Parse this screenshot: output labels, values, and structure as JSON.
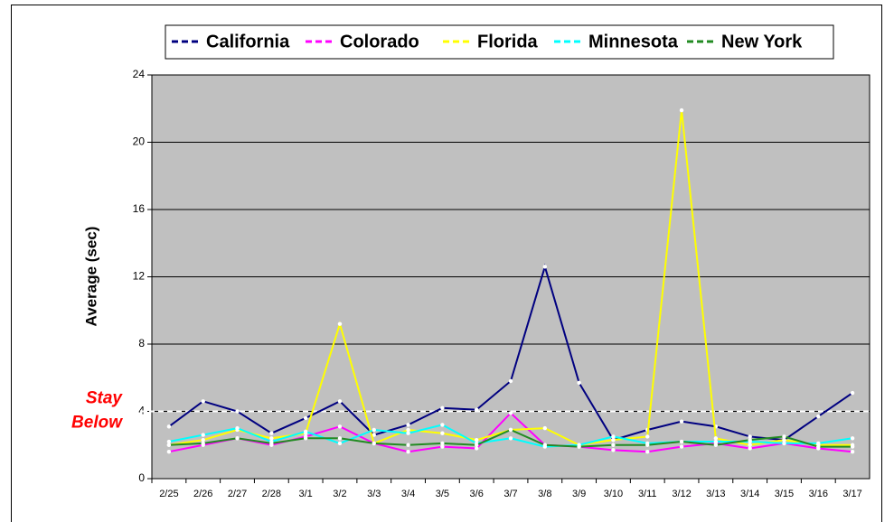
{
  "chart_data": {
    "type": "line",
    "y_label": "Average (sec)",
    "categories": [
      "2/25",
      "2/26",
      "2/27",
      "2/28",
      "3/1",
      "3/2",
      "3/3",
      "3/4",
      "3/5",
      "3/6",
      "3/7",
      "3/8",
      "3/9",
      "3/10",
      "3/11",
      "3/12",
      "3/13",
      "3/14",
      "3/15",
      "3/16",
      "3/17"
    ],
    "series": [
      {
        "name": "California",
        "color": "#000080",
        "values": [
          3.1,
          4.6,
          4.0,
          2.7,
          3.6,
          4.6,
          2.6,
          3.2,
          4.2,
          4.1,
          5.8,
          12.6,
          5.7,
          2.3,
          2.9,
          3.4,
          3.1,
          2.5,
          2.3,
          3.7,
          5.1
        ]
      },
      {
        "name": "Colorado",
        "color": "#ff00ff",
        "values": [
          1.6,
          2.0,
          2.4,
          2.0,
          2.5,
          3.1,
          2.1,
          1.6,
          1.9,
          1.8,
          3.9,
          2.0,
          1.9,
          1.7,
          1.6,
          1.9,
          2.1,
          1.8,
          2.1,
          1.8,
          1.6
        ]
      },
      {
        "name": "Florida",
        "color": "#ffff00",
        "values": [
          2.0,
          2.3,
          2.9,
          2.4,
          2.7,
          9.2,
          2.1,
          2.9,
          2.7,
          2.3,
          2.9,
          3.0,
          2.0,
          2.3,
          2.5,
          21.9,
          2.4,
          2.0,
          2.3,
          2.0,
          2.0
        ]
      },
      {
        "name": "Minnesota",
        "color": "#00ffff",
        "values": [
          2.2,
          2.6,
          3.0,
          2.2,
          2.8,
          2.1,
          2.9,
          2.7,
          3.2,
          2.1,
          2.4,
          1.9,
          2.0,
          2.5,
          2.1,
          2.2,
          2.2,
          2.2,
          2.1,
          2.1,
          2.4
        ]
      },
      {
        "name": "New York",
        "color": "#228b22",
        "values": [
          2.0,
          2.1,
          2.4,
          2.1,
          2.4,
          2.4,
          2.1,
          2.0,
          2.1,
          2.0,
          2.9,
          2.0,
          1.9,
          2.0,
          2.0,
          2.2,
          2.0,
          2.3,
          2.5,
          1.9,
          1.9
        ]
      }
    ],
    "ylim": [
      0,
      24
    ],
    "yticks": [
      0,
      4,
      8,
      12,
      16,
      20,
      24
    ],
    "grid": true,
    "legend": "top",
    "reference_line": {
      "value": 4,
      "label": [
        "Stay",
        "Below"
      ],
      "color": "#ff0000"
    }
  }
}
